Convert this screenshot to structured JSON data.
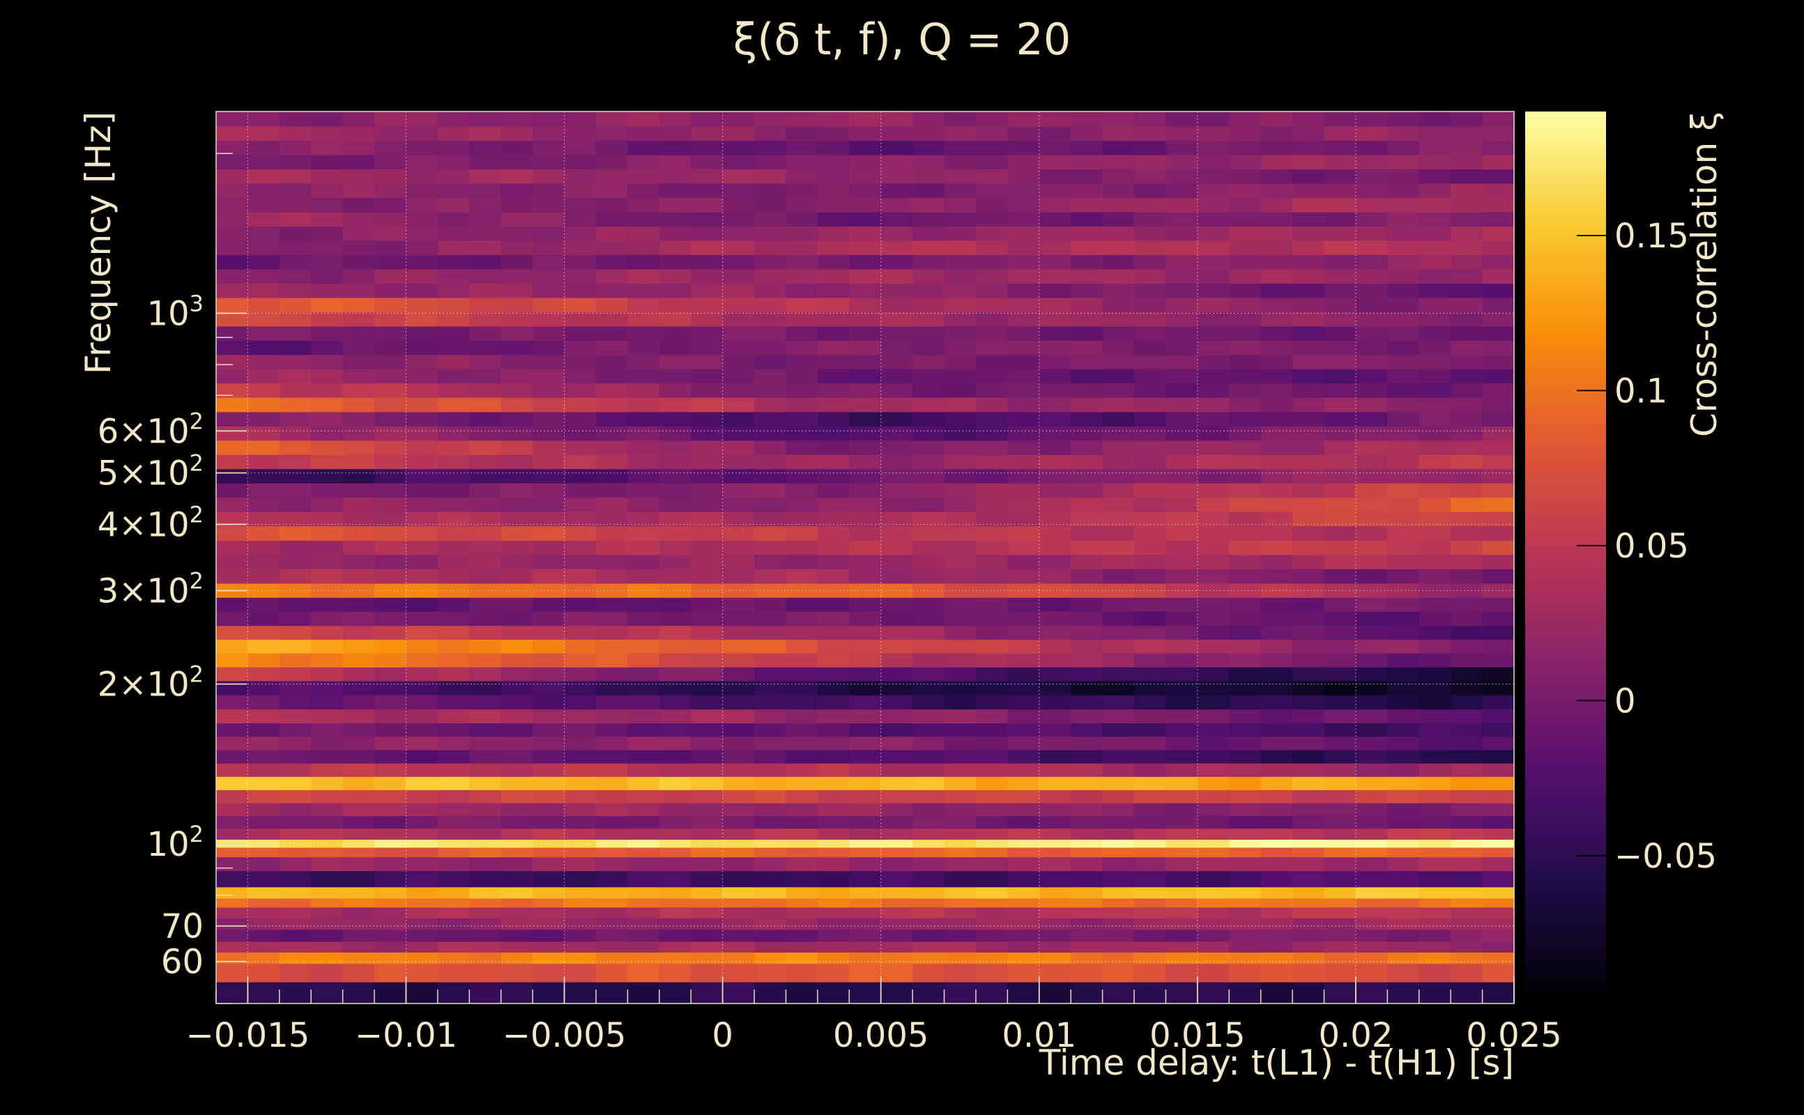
{
  "chart_data": {
    "type": "heatmap",
    "title": "ξ(δ t, f), Q = 20",
    "xlabel": "Time delay: t(L1) - t(H1) [s]",
    "ylabel": "Frequency [Hz]",
    "colorbar_label": "Cross-correlation ξ",
    "xlim": [
      -0.016,
      0.025
    ],
    "ylim": [
      50,
      2400
    ],
    "yscale": "log",
    "grid": true,
    "xticks": [
      {
        "value": -0.015,
        "label": "−0.015"
      },
      {
        "value": -0.01,
        "label": "−0.01"
      },
      {
        "value": -0.005,
        "label": "−0.005"
      },
      {
        "value": 0,
        "label": "0"
      },
      {
        "value": 0.005,
        "label": "0.005"
      },
      {
        "value": 0.01,
        "label": "0.01"
      },
      {
        "value": 0.015,
        "label": "0.015"
      },
      {
        "value": 0.02,
        "label": "0.02"
      },
      {
        "value": 0.025,
        "label": "0.025"
      }
    ],
    "yticks": [
      {
        "value": 60,
        "label": "60"
      },
      {
        "value": 70,
        "label": "70"
      },
      {
        "value": 100,
        "label": "10",
        "sup": "2"
      },
      {
        "value": 200,
        "label": "2×10",
        "sup": "2"
      },
      {
        "value": 300,
        "label": "3×10",
        "sup": "2"
      },
      {
        "value": 400,
        "label": "4×10",
        "sup": "2"
      },
      {
        "value": 500,
        "label": "5×10",
        "sup": "2"
      },
      {
        "value": 600,
        "label": "6×10",
        "sup": "2"
      },
      {
        "value": 1000,
        "label": "10",
        "sup": "3"
      }
    ],
    "colorbar_range": [
      -0.095,
      0.19
    ],
    "colorbar_ticks": [
      {
        "value": -0.05,
        "label": "−0.05"
      },
      {
        "value": 0,
        "label": "0"
      },
      {
        "value": 0.05,
        "label": "0.05"
      },
      {
        "value": 0.1,
        "label": "0.1"
      },
      {
        "value": 0.15,
        "label": "0.15"
      }
    ],
    "colormap": [
      "#000004",
      "#1f0c48",
      "#550f6d",
      "#88226a",
      "#ba3655",
      "#e35933",
      "#f98e09",
      "#f9cb35",
      "#fcffa4"
    ],
    "frequency_bands": [
      {
        "f": 52,
        "values": [
          -0.055,
          -0.055,
          -0.055
        ]
      },
      {
        "f": 58,
        "values": [
          0.07,
          0.08,
          0.07
        ]
      },
      {
        "f": 61,
        "values": [
          0.11,
          0.11,
          0.1
        ]
      },
      {
        "f": 64,
        "values": [
          0.03,
          0.03,
          0.02
        ]
      },
      {
        "f": 67,
        "values": [
          -0.01,
          -0.01,
          0.01
        ]
      },
      {
        "f": 71,
        "values": [
          0.02,
          0.02,
          0.03
        ]
      },
      {
        "f": 74,
        "values": [
          0.03,
          0.04,
          0.05
        ]
      },
      {
        "f": 78,
        "values": [
          0.1,
          0.1,
          0.1
        ]
      },
      {
        "f": 80,
        "values": [
          0.14,
          0.14,
          0.15
        ]
      },
      {
        "f": 86,
        "values": [
          -0.04,
          -0.04,
          -0.02
        ]
      },
      {
        "f": 92,
        "values": [
          0.02,
          0.02,
          0.03
        ]
      },
      {
        "f": 97,
        "values": [
          0.08,
          0.09,
          0.09
        ]
      },
      {
        "f": 100,
        "values": [
          0.17,
          0.17,
          0.19
        ]
      },
      {
        "f": 104,
        "values": [
          0.04,
          0.04,
          0.05
        ]
      },
      {
        "f": 110,
        "values": [
          0.0,
          0.0,
          -0.01
        ]
      },
      {
        "f": 116,
        "values": [
          0.03,
          0.02,
          0.0
        ]
      },
      {
        "f": 123,
        "values": [
          0.06,
          0.06,
          0.06
        ]
      },
      {
        "f": 130,
        "values": [
          0.15,
          0.14,
          0.13
        ]
      },
      {
        "f": 138,
        "values": [
          0.05,
          0.04,
          0.02
        ]
      },
      {
        "f": 146,
        "values": [
          -0.01,
          -0.02,
          -0.06
        ]
      },
      {
        "f": 155,
        "values": [
          0.02,
          0.01,
          -0.02
        ]
      },
      {
        "f": 164,
        "values": [
          0.0,
          -0.02,
          -0.04
        ]
      },
      {
        "f": 174,
        "values": [
          0.04,
          0.02,
          -0.02
        ]
      },
      {
        "f": 185,
        "values": [
          0.0,
          -0.04,
          -0.06
        ]
      },
      {
        "f": 197,
        "values": [
          -0.02,
          -0.06,
          -0.08
        ]
      },
      {
        "f": 209,
        "values": [
          0.06,
          -0.02,
          -0.07
        ]
      },
      {
        "f": 222,
        "values": [
          0.12,
          0.05,
          -0.02
        ]
      },
      {
        "f": 236,
        "values": [
          0.14,
          0.07,
          0.0
        ]
      },
      {
        "f": 250,
        "values": [
          0.07,
          0.03,
          -0.03
        ]
      },
      {
        "f": 266,
        "values": [
          0.0,
          0.0,
          -0.02
        ]
      },
      {
        "f": 283,
        "values": [
          -0.02,
          -0.01,
          0.0
        ]
      },
      {
        "f": 300,
        "values": [
          0.11,
          0.09,
          0.02
        ]
      },
      {
        "f": 320,
        "values": [
          0.04,
          0.03,
          -0.01
        ]
      },
      {
        "f": 340,
        "values": [
          0.02,
          0.02,
          0.04
        ]
      },
      {
        "f": 362,
        "values": [
          0.03,
          0.04,
          0.06
        ]
      },
      {
        "f": 385,
        "values": [
          0.08,
          0.05,
          0.04
        ]
      },
      {
        "f": 410,
        "values": [
          0.04,
          0.03,
          0.07
        ]
      },
      {
        "f": 436,
        "values": [
          0.02,
          0.01,
          0.09
        ]
      },
      {
        "f": 464,
        "values": [
          0.0,
          0.01,
          0.07
        ]
      },
      {
        "f": 494,
        "values": [
          -0.05,
          -0.01,
          0.03
        ]
      },
      {
        "f": 525,
        "values": [
          0.06,
          0.02,
          0.05
        ]
      },
      {
        "f": 559,
        "values": [
          0.09,
          0.0,
          0.04
        ]
      },
      {
        "f": 594,
        "values": [
          0.04,
          -0.03,
          0.02
        ]
      },
      {
        "f": 632,
        "values": [
          0.02,
          -0.04,
          0.0
        ]
      },
      {
        "f": 673,
        "values": [
          0.1,
          0.03,
          0.01
        ]
      },
      {
        "f": 716,
        "values": [
          0.06,
          0.0,
          -0.01
        ]
      },
      {
        "f": 762,
        "values": [
          0.03,
          -0.01,
          -0.02
        ]
      },
      {
        "f": 810,
        "values": [
          0.02,
          0.0,
          0.01
        ]
      },
      {
        "f": 862,
        "values": [
          -0.02,
          0.01,
          0.0
        ]
      },
      {
        "f": 917,
        "values": [
          0.0,
          0.0,
          -0.01
        ]
      },
      {
        "f": 975,
        "values": [
          0.07,
          0.03,
          0.01
        ]
      },
      {
        "f": 1038,
        "values": [
          0.09,
          0.04,
          0.0
        ]
      },
      {
        "f": 1104,
        "values": [
          0.02,
          0.02,
          -0.02
        ]
      },
      {
        "f": 1175,
        "values": [
          0.01,
          0.03,
          0.02
        ]
      },
      {
        "f": 1250,
        "values": [
          -0.01,
          0.0,
          0.02
        ]
      },
      {
        "f": 1330,
        "values": [
          0.0,
          0.04,
          0.04
        ]
      },
      {
        "f": 1415,
        "values": [
          0.01,
          0.02,
          0.03
        ]
      },
      {
        "f": 1505,
        "values": [
          0.03,
          -0.01,
          0.01
        ]
      },
      {
        "f": 1601,
        "values": [
          0.01,
          0.01,
          0.04
        ]
      },
      {
        "f": 1704,
        "values": [
          0.02,
          0.0,
          0.02
        ]
      },
      {
        "f": 1813,
        "values": [
          0.03,
          0.02,
          -0.01
        ]
      },
      {
        "f": 1929,
        "values": [
          0.0,
          0.01,
          0.03
        ]
      },
      {
        "f": 2052,
        "values": [
          0.02,
          -0.02,
          0.01
        ]
      },
      {
        "f": 2183,
        "values": [
          0.03,
          0.01,
          0.02
        ]
      },
      {
        "f": 2323,
        "values": [
          0.01,
          0.02,
          0.0
        ]
      }
    ],
    "band_anchor_times": [
      -0.016,
      0.004,
      0.025
    ]
  }
}
